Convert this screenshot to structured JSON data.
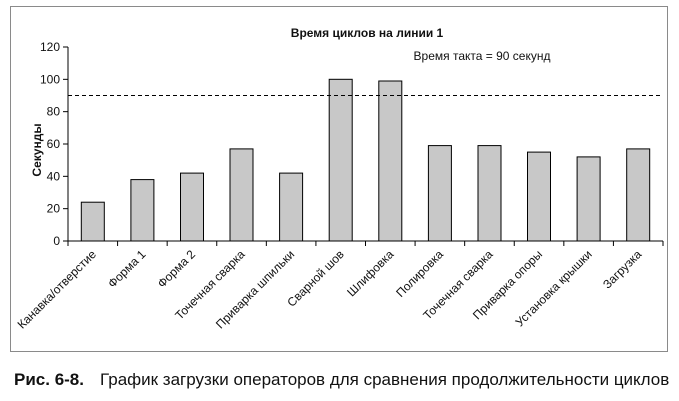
{
  "chart_data": {
    "type": "bar",
    "title": "Время циклов на линии 1",
    "annotation": "Время такта = 90 секунд",
    "ylabel": "Секунды",
    "xlabel": "",
    "ylim": [
      0,
      120
    ],
    "yticks": [
      0,
      20,
      40,
      60,
      80,
      100,
      120
    ],
    "categories": [
      "Канавка/отверстие",
      "Форма 1",
      "Форма 2",
      "Точечная сварка",
      "Приварка шпильки",
      "Сварной шов",
      "Шлифовка",
      "Полировка",
      "Точечная сварка",
      "Приварка опоры",
      "Установка крышки",
      "Загрузка"
    ],
    "values": [
      24,
      38,
      42,
      57,
      42,
      100,
      99,
      59,
      59,
      55,
      52,
      57
    ],
    "reference_line": {
      "value": 90,
      "style": "dashed"
    },
    "bar_color": "#c8c8c8",
    "grid": false,
    "legend": "none"
  },
  "caption": {
    "label": "Рис. 6-8.",
    "text": "График загрузки операторов для сравнения продолжительности циклов"
  }
}
